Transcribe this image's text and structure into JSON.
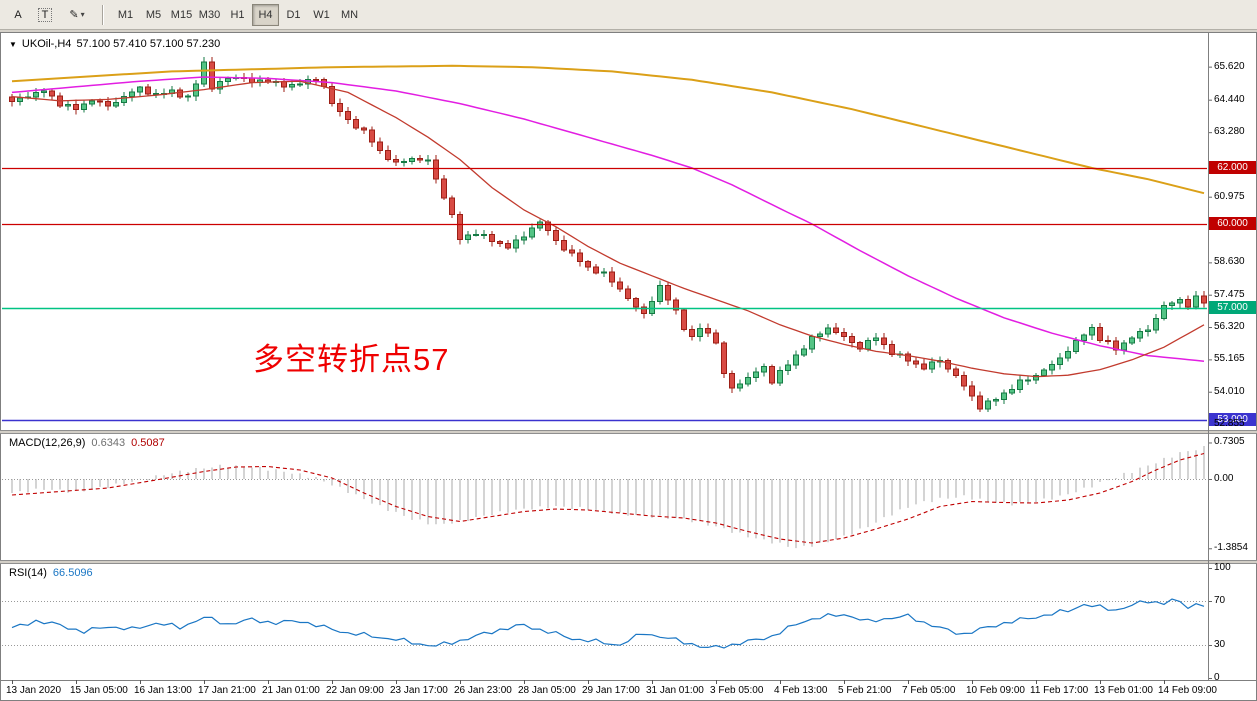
{
  "icons": {
    "chart_dropdown": "▼",
    "pencil_tool": "✎",
    "dropdown_caret": "▾"
  },
  "toolbar": {
    "tools": [
      {
        "label": "A"
      },
      {
        "label": "T"
      }
    ],
    "timeframes": [
      "M1",
      "M5",
      "M15",
      "M30",
      "H1",
      "H4",
      "D1",
      "W1",
      "MN"
    ],
    "active_timeframe": "H4"
  },
  "chart": {
    "symbol_period": "UKOil-,H4",
    "ohlc_text": "57.100 57.410 57.100 57.230",
    "annotation": {
      "text": "多空转折点57",
      "color": "#ef0000"
    },
    "price_axis_labels": [
      "65.620",
      "64.440",
      "63.280",
      "60.975",
      "58.630",
      "57.475",
      "56.320",
      "55.165",
      "54.010",
      "52.855"
    ],
    "hlines": [
      {
        "label": "62.000",
        "price": 62.0,
        "color": "#cc0000",
        "label_bg": "#c00000",
        "width": 1.2
      },
      {
        "label": "60.000",
        "price": 60.0,
        "color": "#cc0000",
        "label_bg": "#c00000",
        "width": 1.2
      },
      {
        "label": "57.000",
        "price": 57.0,
        "color": "#00c383",
        "label_bg": "#00a878",
        "width": 1.5
      },
      {
        "label": "53.000",
        "price": 53.0,
        "color": "#3b33cf",
        "label_bg": "#3b33cf",
        "width": 1.5
      }
    ],
    "colors": {
      "up_fill": "#54c485",
      "up_stroke": "#157a44",
      "down_fill": "#d84b44",
      "down_stroke": "#9c1f16"
    },
    "series": {
      "close_anchors": [
        [
          0,
          64.35
        ],
        [
          2,
          64.6
        ],
        [
          4,
          64.75
        ],
        [
          6,
          64.3
        ],
        [
          8,
          64.1
        ],
        [
          10,
          64.45
        ],
        [
          12,
          64.2
        ],
        [
          14,
          64.55
        ],
        [
          16,
          64.85
        ],
        [
          18,
          64.6
        ],
        [
          20,
          64.75
        ],
        [
          22,
          64.5
        ],
        [
          23,
          65.0
        ],
        [
          24,
          65.8
        ],
        [
          25,
          64.85
        ],
        [
          26,
          65.05
        ],
        [
          28,
          65.3
        ],
        [
          30,
          65.05
        ],
        [
          32,
          65.15
        ],
        [
          34,
          64.9
        ],
        [
          36,
          65.05
        ],
        [
          38,
          65.15
        ],
        [
          39,
          64.95
        ],
        [
          40,
          64.3
        ],
        [
          42,
          63.7
        ],
        [
          44,
          63.3
        ],
        [
          46,
          62.6
        ],
        [
          48,
          62.15
        ],
        [
          50,
          62.35
        ],
        [
          52,
          62.25
        ],
        [
          53,
          61.6
        ],
        [
          54,
          61.0
        ],
        [
          55,
          60.3
        ],
        [
          56,
          59.45
        ],
        [
          58,
          59.7
        ],
        [
          60,
          59.4
        ],
        [
          62,
          59.2
        ],
        [
          64,
          59.55
        ],
        [
          65,
          59.9
        ],
        [
          66,
          60.05
        ],
        [
          67,
          59.75
        ],
        [
          68,
          59.4
        ],
        [
          70,
          58.9
        ],
        [
          72,
          58.45
        ],
        [
          74,
          58.2
        ],
        [
          76,
          57.7
        ],
        [
          78,
          57.0
        ],
        [
          79,
          56.8
        ],
        [
          80,
          57.3
        ],
        [
          81,
          57.75
        ],
        [
          82,
          57.3
        ],
        [
          83,
          56.9
        ],
        [
          84,
          56.3
        ],
        [
          85,
          55.9
        ],
        [
          86,
          56.3
        ],
        [
          87,
          56.1
        ],
        [
          88,
          55.8
        ],
        [
          89,
          54.6
        ],
        [
          90,
          54.15
        ],
        [
          92,
          54.5
        ],
        [
          94,
          54.9
        ],
        [
          95,
          54.4
        ],
        [
          96,
          54.7
        ],
        [
          98,
          55.3
        ],
        [
          100,
          55.9
        ],
        [
          102,
          56.3
        ],
        [
          104,
          55.95
        ],
        [
          106,
          55.6
        ],
        [
          108,
          55.95
        ],
        [
          110,
          55.4
        ],
        [
          112,
          55.15
        ],
        [
          114,
          54.85
        ],
        [
          116,
          55.15
        ],
        [
          118,
          54.55
        ],
        [
          120,
          53.85
        ],
        [
          121,
          53.45
        ],
        [
          122,
          53.6
        ],
        [
          124,
          53.95
        ],
        [
          126,
          54.35
        ],
        [
          128,
          54.6
        ],
        [
          130,
          54.95
        ],
        [
          132,
          55.5
        ],
        [
          134,
          56.05
        ],
        [
          135,
          56.3
        ],
        [
          136,
          55.9
        ],
        [
          138,
          55.55
        ],
        [
          140,
          55.95
        ],
        [
          142,
          56.25
        ],
        [
          144,
          57.05
        ],
        [
          146,
          57.3
        ],
        [
          147,
          57.1
        ],
        [
          148,
          57.35
        ],
        [
          149,
          57.23
        ]
      ],
      "mas": [
        {
          "name": "ma-slow-orange",
          "color": "#dba018",
          "width": 2,
          "anchors": [
            [
              0,
              65.1
            ],
            [
              20,
              65.45
            ],
            [
              40,
              65.6
            ],
            [
              55,
              65.65
            ],
            [
              65,
              65.6
            ],
            [
              75,
              65.45
            ],
            [
              85,
              65.15
            ],
            [
              95,
              64.7
            ],
            [
              105,
              64.1
            ],
            [
              115,
              63.4
            ],
            [
              125,
              62.7
            ],
            [
              135,
              62.0
            ],
            [
              142,
              61.6
            ],
            [
              149,
              61.1
            ]
          ]
        },
        {
          "name": "ma-mid-magenta",
          "color": "#e21ee2",
          "width": 1.5,
          "anchors": [
            [
              0,
              64.7
            ],
            [
              8,
              64.9
            ],
            [
              16,
              65.1
            ],
            [
              24,
              65.25
            ],
            [
              32,
              65.2
            ],
            [
              40,
              65.05
            ],
            [
              48,
              64.75
            ],
            [
              56,
              64.3
            ],
            [
              64,
              63.75
            ],
            [
              72,
              63.1
            ],
            [
              80,
              62.45
            ],
            [
              85,
              62.0
            ],
            [
              90,
              61.4
            ],
            [
              96,
              60.55
            ],
            [
              100,
              60.0
            ],
            [
              106,
              59.05
            ],
            [
              112,
              58.15
            ],
            [
              118,
              57.35
            ],
            [
              124,
              56.65
            ],
            [
              130,
              56.1
            ],
            [
              136,
              55.65
            ],
            [
              142,
              55.3
            ],
            [
              149,
              55.1
            ]
          ]
        },
        {
          "name": "ma-fast-red",
          "color": "#c23b2e",
          "width": 1.3,
          "anchors": [
            [
              0,
              64.55
            ],
            [
              6,
              64.4
            ],
            [
              12,
              64.45
            ],
            [
              18,
              64.6
            ],
            [
              24,
              64.8
            ],
            [
              30,
              65.05
            ],
            [
              36,
              65.1
            ],
            [
              42,
              64.7
            ],
            [
              48,
              63.8
            ],
            [
              52,
              63.1
            ],
            [
              56,
              62.3
            ],
            [
              60,
              61.3
            ],
            [
              64,
              60.5
            ],
            [
              68,
              59.9
            ],
            [
              72,
              59.2
            ],
            [
              76,
              58.6
            ],
            [
              80,
              58.15
            ],
            [
              84,
              57.7
            ],
            [
              88,
              57.3
            ],
            [
              92,
              56.9
            ],
            [
              96,
              56.4
            ],
            [
              100,
              56.0
            ],
            [
              104,
              55.7
            ],
            [
              108,
              55.45
            ],
            [
              112,
              55.3
            ],
            [
              116,
              55.1
            ],
            [
              120,
              54.85
            ],
            [
              124,
              54.65
            ],
            [
              128,
              54.55
            ],
            [
              132,
              54.6
            ],
            [
              136,
              54.8
            ],
            [
              140,
              55.15
            ],
            [
              144,
              55.6
            ],
            [
              149,
              56.4
            ]
          ]
        }
      ]
    }
  },
  "macd": {
    "label": "MACD(12,26,9)",
    "main_value": "0.6343",
    "signal_value": "0.5087",
    "axis_labels": [
      "0.7305",
      "0.00",
      "-1.3854"
    ],
    "axis_values": [
      0.7305,
      0,
      -1.3854
    ],
    "hist_color": "#a9a9a9",
    "signal_color": "#c00000",
    "hist_anchors": [
      [
        0,
        -0.28
      ],
      [
        4,
        -0.2
      ],
      [
        8,
        -0.26
      ],
      [
        12,
        -0.15
      ],
      [
        16,
        -0.02
      ],
      [
        20,
        0.12
      ],
      [
        24,
        0.22
      ],
      [
        26,
        0.26
      ],
      [
        30,
        0.24
      ],
      [
        34,
        0.15
      ],
      [
        38,
        0.02
      ],
      [
        42,
        -0.25
      ],
      [
        46,
        -0.55
      ],
      [
        50,
        -0.8
      ],
      [
        53,
        -0.92
      ],
      [
        56,
        -0.85
      ],
      [
        60,
        -0.7
      ],
      [
        64,
        -0.6
      ],
      [
        68,
        -0.55
      ],
      [
        72,
        -0.6
      ],
      [
        76,
        -0.7
      ],
      [
        80,
        -0.75
      ],
      [
        84,
        -0.8
      ],
      [
        88,
        -0.95
      ],
      [
        92,
        -1.15
      ],
      [
        96,
        -1.3
      ],
      [
        98,
        -1.38
      ],
      [
        101,
        -1.3
      ],
      [
        104,
        -1.15
      ],
      [
        107,
        -0.95
      ],
      [
        110,
        -0.7
      ],
      [
        113,
        -0.5
      ],
      [
        116,
        -0.4
      ],
      [
        119,
        -0.35
      ],
      [
        122,
        -0.45
      ],
      [
        125,
        -0.5
      ],
      [
        128,
        -0.45
      ],
      [
        131,
        -0.35
      ],
      [
        134,
        -0.2
      ],
      [
        137,
        -0.02
      ],
      [
        140,
        0.15
      ],
      [
        143,
        0.33
      ],
      [
        146,
        0.52
      ],
      [
        149,
        0.63
      ]
    ],
    "signal_anchors": [
      [
        0,
        -0.32
      ],
      [
        6,
        -0.25
      ],
      [
        12,
        -0.18
      ],
      [
        18,
        -0.02
      ],
      [
        24,
        0.15
      ],
      [
        28,
        0.24
      ],
      [
        32,
        0.25
      ],
      [
        36,
        0.18
      ],
      [
        40,
        0.02
      ],
      [
        44,
        -0.28
      ],
      [
        48,
        -0.55
      ],
      [
        52,
        -0.75
      ],
      [
        56,
        -0.85
      ],
      [
        60,
        -0.75
      ],
      [
        64,
        -0.65
      ],
      [
        68,
        -0.6
      ],
      [
        72,
        -0.62
      ],
      [
        76,
        -0.68
      ],
      [
        80,
        -0.74
      ],
      [
        84,
        -0.78
      ],
      [
        88,
        -0.88
      ],
      [
        92,
        -1.05
      ],
      [
        96,
        -1.2
      ],
      [
        100,
        -1.28
      ],
      [
        104,
        -1.18
      ],
      [
        108,
        -1.0
      ],
      [
        112,
        -0.8
      ],
      [
        116,
        -0.55
      ],
      [
        120,
        -0.45
      ],
      [
        124,
        -0.47
      ],
      [
        128,
        -0.48
      ],
      [
        132,
        -0.42
      ],
      [
        136,
        -0.28
      ],
      [
        140,
        -0.05
      ],
      [
        143,
        0.18
      ],
      [
        146,
        0.38
      ],
      [
        149,
        0.51
      ]
    ]
  },
  "rsi": {
    "label": "RSI(14)",
    "value": "66.5096",
    "line_color": "#1a76c4",
    "axis_labels": [
      "100",
      "70",
      "30",
      "0"
    ],
    "axis_values": [
      100,
      70,
      30,
      0
    ],
    "grid_values": [
      70,
      30
    ],
    "anchors": [
      [
        0,
        45
      ],
      [
        3,
        52
      ],
      [
        6,
        48
      ],
      [
        9,
        42
      ],
      [
        12,
        47
      ],
      [
        15,
        44
      ],
      [
        18,
        50
      ],
      [
        21,
        46
      ],
      [
        24,
        55
      ],
      [
        27,
        49
      ],
      [
        30,
        53
      ],
      [
        33,
        50
      ],
      [
        36,
        52
      ],
      [
        39,
        46
      ],
      [
        42,
        41
      ],
      [
        45,
        38
      ],
      [
        48,
        35
      ],
      [
        51,
        31
      ],
      [
        53,
        29
      ],
      [
        56,
        34
      ],
      [
        58,
        38
      ],
      [
        61,
        44
      ],
      [
        64,
        48
      ],
      [
        67,
        42
      ],
      [
        70,
        36
      ],
      [
        73,
        33
      ],
      [
        76,
        30
      ],
      [
        79,
        41
      ],
      [
        82,
        36
      ],
      [
        85,
        31
      ],
      [
        87,
        27
      ],
      [
        89,
        29
      ],
      [
        92,
        33
      ],
      [
        95,
        38
      ],
      [
        97,
        45
      ],
      [
        99,
        52
      ],
      [
        101,
        55
      ],
      [
        104,
        58
      ],
      [
        107,
        51
      ],
      [
        109,
        54
      ],
      [
        112,
        56
      ],
      [
        115,
        48
      ],
      [
        117,
        43
      ],
      [
        119,
        40
      ],
      [
        122,
        46
      ],
      [
        124,
        50
      ],
      [
        127,
        54
      ],
      [
        129,
        57
      ],
      [
        132,
        61
      ],
      [
        134,
        67
      ],
      [
        136,
        64
      ],
      [
        138,
        62
      ],
      [
        140,
        66
      ],
      [
        142,
        70
      ],
      [
        144,
        68
      ],
      [
        145,
        71
      ],
      [
        147,
        65
      ],
      [
        148,
        67
      ],
      [
        149,
        66.5
      ]
    ]
  },
  "time_axis": [
    "13 Jan 2020",
    "15 Jan 05:00",
    "16 Jan 13:00",
    "17 Jan 21:00",
    "21 Jan 01:00",
    "22 Jan 09:00",
    "23 Jan 17:00",
    "26 Jan 23:00",
    "28 Jan 05:00",
    "29 Jan 17:00",
    "31 Jan 01:00",
    "3 Feb 05:00",
    "4 Feb 13:00",
    "5 Feb 21:00",
    "7 Feb 05:00",
    "10 Feb 09:00",
    "11 Feb 17:00",
    "13 Feb 01:00",
    "14 Feb 09:00"
  ]
}
